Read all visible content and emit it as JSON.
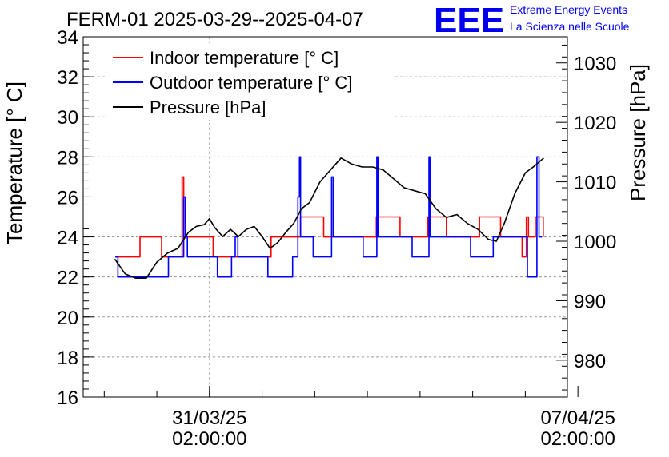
{
  "chart_data": {
    "type": "line",
    "title": "FERM-01 2025-03-29--2025-04-07",
    "logo": {
      "text": "EEE",
      "line1": "Extreme Energy Events",
      "line2": "La Scienza nelle Scuole"
    },
    "ylabel": "Temperature [° C]",
    "y2label": "Pressure [hPa]",
    "ylim": [
      16,
      34
    ],
    "y2lim": [
      973.8,
      1034.4
    ],
    "yticks": [
      "16",
      "18",
      "20",
      "22",
      "24",
      "26",
      "28",
      "30",
      "32",
      "34"
    ],
    "y2ticks": [
      "980",
      "990",
      "1000",
      "1010",
      "1020",
      "1030"
    ],
    "xlim": [
      28.6,
      37.8
    ],
    "xticks": [
      {
        "x": 31,
        "date": "31/03/25",
        "time": "02:00:00"
      },
      {
        "x": 38,
        "date": "07/04/25",
        "time": "02:00:00"
      }
    ],
    "grid": true,
    "legend_position": "top-left",
    "series": [
      {
        "name": "Indoor temperature [° C]",
        "color": "#ff0000",
        "axis": "left",
        "points": [
          [
            29.21,
            23
          ],
          [
            29.68,
            23
          ],
          [
            29.68,
            24
          ],
          [
            30.09,
            24
          ],
          [
            30.09,
            23
          ],
          [
            30.48,
            23
          ],
          [
            30.48,
            27
          ],
          [
            30.51,
            27
          ],
          [
            30.51,
            24
          ],
          [
            31.07,
            24
          ],
          [
            31.07,
            23
          ],
          [
            32.17,
            23
          ],
          [
            32.17,
            24
          ],
          [
            32.73,
            24
          ],
          [
            32.73,
            25
          ],
          [
            33.17,
            25
          ],
          [
            33.17,
            24
          ],
          [
            34.17,
            24
          ],
          [
            34.17,
            25
          ],
          [
            34.62,
            25
          ],
          [
            34.62,
            24
          ],
          [
            35.15,
            24
          ],
          [
            35.15,
            25
          ],
          [
            35.5,
            25
          ],
          [
            35.5,
            24
          ],
          [
            36.13,
            24
          ],
          [
            36.13,
            25
          ],
          [
            36.53,
            25
          ],
          [
            36.53,
            24
          ],
          [
            36.94,
            24
          ],
          [
            36.94,
            23
          ],
          [
            37.02,
            23
          ],
          [
            37.02,
            25
          ],
          [
            37.06,
            25
          ],
          [
            37.06,
            24
          ],
          [
            37.19,
            24
          ],
          [
            37.19,
            25
          ],
          [
            37.34,
            25
          ],
          [
            37.34,
            24
          ]
        ]
      },
      {
        "name": "Outdoor temperature [° C]",
        "color": "#0000ff",
        "axis": "left",
        "points": [
          [
            29.21,
            23
          ],
          [
            29.26,
            23
          ],
          [
            29.26,
            22
          ],
          [
            30.22,
            22
          ],
          [
            30.22,
            23
          ],
          [
            30.51,
            23
          ],
          [
            30.51,
            26
          ],
          [
            30.54,
            26
          ],
          [
            30.54,
            24
          ],
          [
            30.58,
            24
          ],
          [
            30.58,
            23
          ],
          [
            31.15,
            23
          ],
          [
            31.15,
            22
          ],
          [
            31.42,
            22
          ],
          [
            31.42,
            23
          ],
          [
            31.49,
            23
          ],
          [
            31.49,
            24
          ],
          [
            31.54,
            24
          ],
          [
            31.54,
            23
          ],
          [
            32.11,
            23
          ],
          [
            32.11,
            22
          ],
          [
            32.58,
            22
          ],
          [
            32.58,
            23
          ],
          [
            32.68,
            23
          ],
          [
            32.68,
            26
          ],
          [
            32.71,
            26
          ],
          [
            32.71,
            28
          ],
          [
            32.73,
            28
          ],
          [
            32.73,
            24
          ],
          [
            32.97,
            24
          ],
          [
            32.97,
            23
          ],
          [
            33.32,
            23
          ],
          [
            33.32,
            27
          ],
          [
            33.35,
            27
          ],
          [
            33.35,
            24
          ],
          [
            33.92,
            24
          ],
          [
            33.92,
            23
          ],
          [
            34.18,
            23
          ],
          [
            34.18,
            28
          ],
          [
            34.2,
            28
          ],
          [
            34.2,
            24
          ],
          [
            34.85,
            24
          ],
          [
            34.85,
            23
          ],
          [
            35.17,
            23
          ],
          [
            35.17,
            28
          ],
          [
            35.19,
            28
          ],
          [
            35.19,
            24
          ],
          [
            35.96,
            24
          ],
          [
            35.96,
            23
          ],
          [
            36.39,
            23
          ],
          [
            36.39,
            24
          ],
          [
            37.04,
            24
          ],
          [
            37.04,
            22
          ],
          [
            37.22,
            22
          ],
          [
            37.22,
            28
          ],
          [
            37.26,
            28
          ],
          [
            37.26,
            24
          ],
          [
            37.32,
            24
          ]
        ]
      },
      {
        "name": "Pressure [hPa]",
        "color": "#000000",
        "axis": "right",
        "points": [
          [
            29.2,
            997
          ],
          [
            29.4,
            994.5
          ],
          [
            29.6,
            993.8
          ],
          [
            29.8,
            993.8
          ],
          [
            30.0,
            996.5
          ],
          [
            30.2,
            998
          ],
          [
            30.4,
            998.8
          ],
          [
            30.6,
            1001.5
          ],
          [
            30.75,
            1002.5
          ],
          [
            30.9,
            1002.8
          ],
          [
            31.0,
            1003.8
          ],
          [
            31.1,
            1002.3
          ],
          [
            31.25,
            1000.8
          ],
          [
            31.4,
            1002
          ],
          [
            31.55,
            1000.8
          ],
          [
            31.7,
            1002
          ],
          [
            31.85,
            1002.5
          ],
          [
            32.0,
            1000.8
          ],
          [
            32.15,
            998.8
          ],
          [
            32.3,
            999.8
          ],
          [
            32.45,
            1001.5
          ],
          [
            32.6,
            1003
          ],
          [
            32.75,
            1005.5
          ],
          [
            32.9,
            1006.5
          ],
          [
            33.1,
            1010
          ],
          [
            33.3,
            1012
          ],
          [
            33.5,
            1014
          ],
          [
            33.7,
            1013
          ],
          [
            33.9,
            1012.5
          ],
          [
            34.1,
            1012.5
          ],
          [
            34.3,
            1012
          ],
          [
            34.5,
            1010.5
          ],
          [
            34.7,
            1009
          ],
          [
            34.9,
            1008.5
          ],
          [
            35.1,
            1008
          ],
          [
            35.3,
            1005.5
          ],
          [
            35.5,
            1004
          ],
          [
            35.7,
            1004.5
          ],
          [
            35.9,
            1003
          ],
          [
            36.1,
            1002
          ],
          [
            36.3,
            1000.3
          ],
          [
            36.45,
            1000
          ],
          [
            36.6,
            1003
          ],
          [
            36.8,
            1008
          ],
          [
            37.0,
            1011.5
          ],
          [
            37.15,
            1012.5
          ],
          [
            37.35,
            1014
          ]
        ]
      }
    ]
  }
}
